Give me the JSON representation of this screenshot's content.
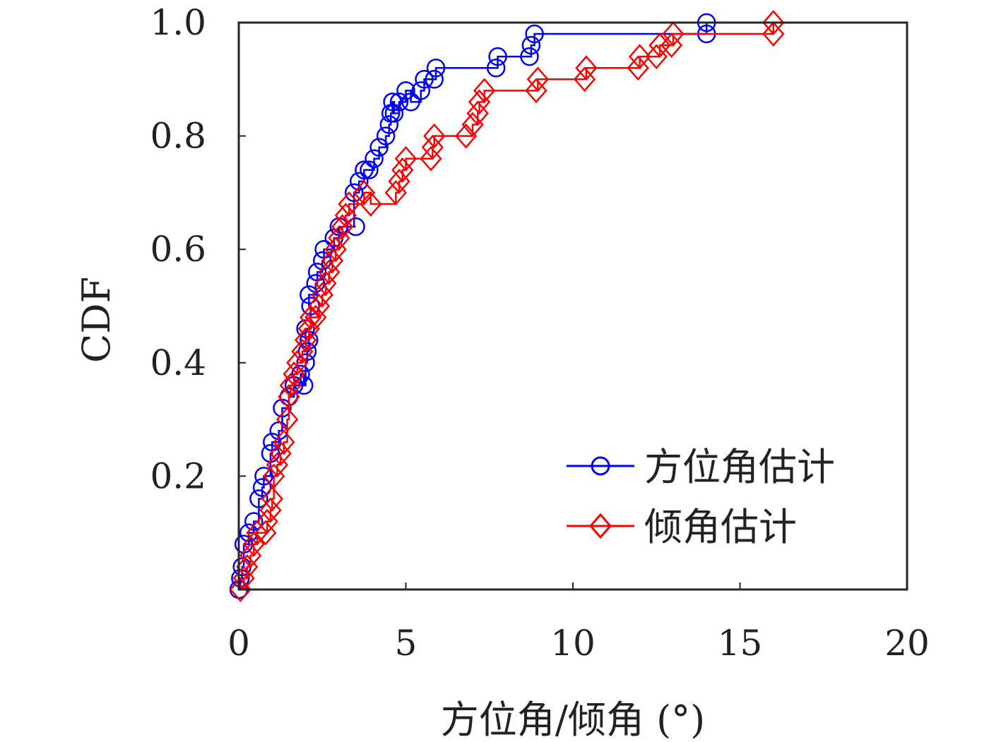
{
  "chart_data": {
    "type": "line",
    "title": "",
    "xlabel": "方位角/倾角 (°)",
    "ylabel": "CDF",
    "xlim": [
      0,
      20
    ],
    "ylim": [
      0,
      1
    ],
    "grid": false,
    "legend_position": "bottom-right",
    "x_ticks": [
      0,
      5,
      10,
      15,
      20
    ],
    "x_tick_labels": [
      "0",
      "5",
      "10",
      "15",
      "20"
    ],
    "y_ticks": [
      0.2,
      0.4,
      0.6,
      0.8,
      1.0
    ],
    "y_tick_labels": [
      "0.2",
      "0.4",
      "0.6",
      "0.8",
      "1.0"
    ],
    "series": [
      {
        "name": "方位角估计",
        "color": "#0000ff",
        "marker": "circle",
        "step": true,
        "points": [
          [
            0.0,
            0.0
          ],
          [
            0.05,
            0.02
          ],
          [
            0.1,
            0.04
          ],
          [
            0.15,
            0.08
          ],
          [
            0.3,
            0.1
          ],
          [
            0.45,
            0.12
          ],
          [
            0.6,
            0.16
          ],
          [
            0.7,
            0.18
          ],
          [
            0.75,
            0.2
          ],
          [
            0.95,
            0.24
          ],
          [
            1.0,
            0.26
          ],
          [
            1.2,
            0.28
          ],
          [
            1.3,
            0.32
          ],
          [
            1.5,
            0.34
          ],
          [
            1.65,
            0.36
          ],
          [
            1.85,
            0.38
          ],
          [
            1.95,
            0.36
          ],
          [
            2.0,
            0.4
          ],
          [
            2.05,
            0.42
          ],
          [
            2.1,
            0.44
          ],
          [
            2.0,
            0.46
          ],
          [
            2.15,
            0.5
          ],
          [
            2.1,
            0.52
          ],
          [
            2.3,
            0.54
          ],
          [
            2.35,
            0.56
          ],
          [
            2.5,
            0.58
          ],
          [
            2.55,
            0.6
          ],
          [
            2.85,
            0.62
          ],
          [
            3.0,
            0.64
          ],
          [
            3.5,
            0.64
          ],
          [
            3.45,
            0.7
          ],
          [
            3.6,
            0.72
          ],
          [
            3.75,
            0.74
          ],
          [
            3.9,
            0.74
          ],
          [
            4.05,
            0.76
          ],
          [
            4.2,
            0.78
          ],
          [
            4.4,
            0.8
          ],
          [
            4.5,
            0.82
          ],
          [
            4.55,
            0.84
          ],
          [
            4.6,
            0.86
          ],
          [
            4.65,
            0.84
          ],
          [
            4.8,
            0.86
          ],
          [
            5.0,
            0.88
          ],
          [
            5.15,
            0.86
          ],
          [
            5.45,
            0.88
          ],
          [
            5.55,
            0.9
          ],
          [
            5.85,
            0.9
          ],
          [
            5.9,
            0.92
          ],
          [
            7.7,
            0.92
          ],
          [
            7.75,
            0.94
          ],
          [
            8.7,
            0.94
          ],
          [
            8.75,
            0.96
          ],
          [
            8.85,
            0.98
          ],
          [
            14.0,
            0.98
          ],
          [
            14.0,
            1.0
          ]
        ]
      },
      {
        "name": "倾角估计",
        "color": "#ff0000",
        "marker": "diamond",
        "step": true,
        "points": [
          [
            0.05,
            0.0
          ],
          [
            0.15,
            0.02
          ],
          [
            0.25,
            0.04
          ],
          [
            0.35,
            0.06
          ],
          [
            0.45,
            0.08
          ],
          [
            0.55,
            0.1
          ],
          [
            0.8,
            0.1
          ],
          [
            0.85,
            0.12
          ],
          [
            0.95,
            0.14
          ],
          [
            1.0,
            0.16
          ],
          [
            1.05,
            0.2
          ],
          [
            1.15,
            0.22
          ],
          [
            1.25,
            0.24
          ],
          [
            1.35,
            0.26
          ],
          [
            1.45,
            0.3
          ],
          [
            1.5,
            0.34
          ],
          [
            1.55,
            0.36
          ],
          [
            1.65,
            0.38
          ],
          [
            1.75,
            0.4
          ],
          [
            1.9,
            0.42
          ],
          [
            2.0,
            0.44
          ],
          [
            2.1,
            0.46
          ],
          [
            2.15,
            0.48
          ],
          [
            2.3,
            0.48
          ],
          [
            2.4,
            0.5
          ],
          [
            2.5,
            0.52
          ],
          [
            2.6,
            0.54
          ],
          [
            2.7,
            0.56
          ],
          [
            2.8,
            0.58
          ],
          [
            2.9,
            0.6
          ],
          [
            3.0,
            0.62
          ],
          [
            3.1,
            0.64
          ],
          [
            3.2,
            0.66
          ],
          [
            3.3,
            0.68
          ],
          [
            3.75,
            0.7
          ],
          [
            3.95,
            0.68
          ],
          [
            4.7,
            0.7
          ],
          [
            4.8,
            0.72
          ],
          [
            4.9,
            0.74
          ],
          [
            5.0,
            0.76
          ],
          [
            5.75,
            0.76
          ],
          [
            5.8,
            0.78
          ],
          [
            5.85,
            0.8
          ],
          [
            6.8,
            0.8
          ],
          [
            7.0,
            0.82
          ],
          [
            7.15,
            0.84
          ],
          [
            7.2,
            0.86
          ],
          [
            7.35,
            0.88
          ],
          [
            8.9,
            0.88
          ],
          [
            8.95,
            0.9
          ],
          [
            10.35,
            0.9
          ],
          [
            10.4,
            0.92
          ],
          [
            11.95,
            0.92
          ],
          [
            12.0,
            0.94
          ],
          [
            12.5,
            0.94
          ],
          [
            12.6,
            0.96
          ],
          [
            12.95,
            0.96
          ],
          [
            13.0,
            0.98
          ],
          [
            16.0,
            0.98
          ],
          [
            16.0,
            1.0
          ]
        ]
      }
    ]
  }
}
